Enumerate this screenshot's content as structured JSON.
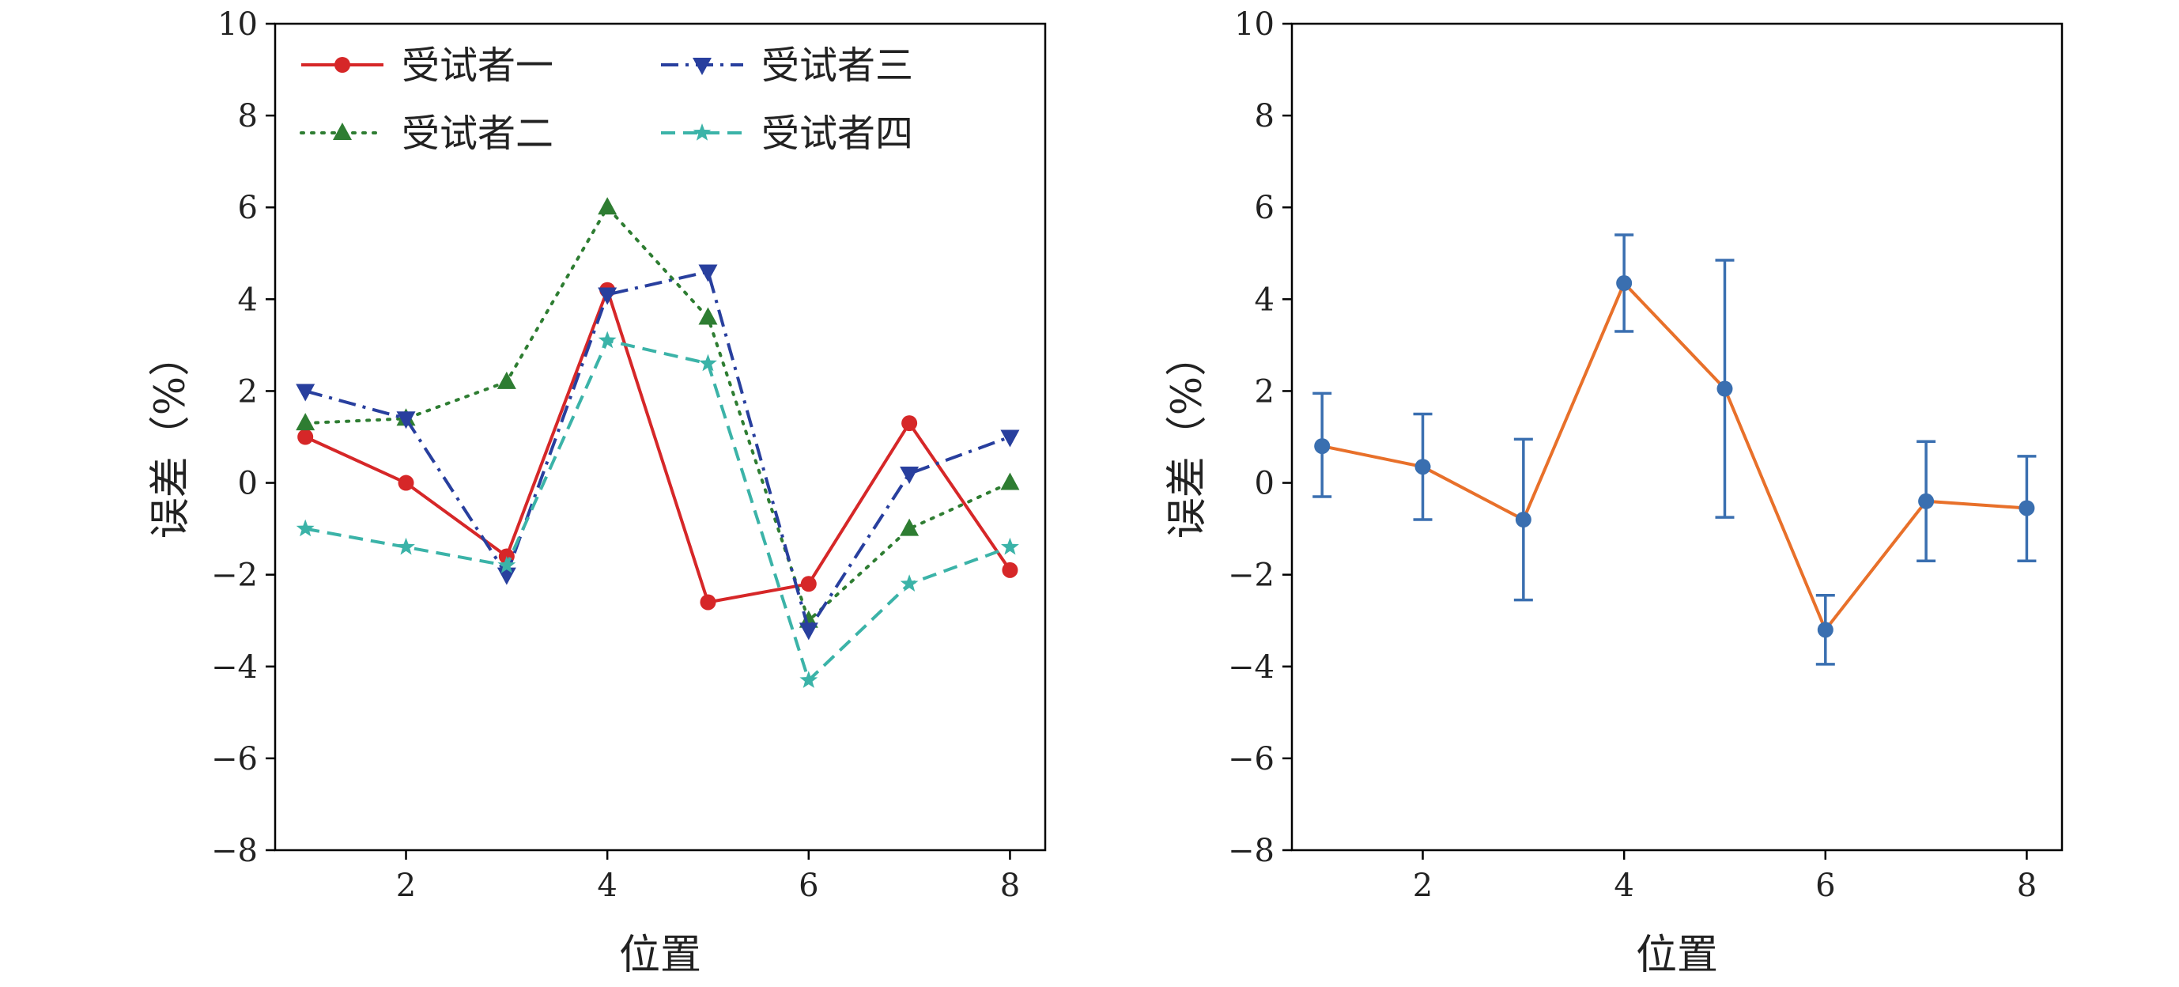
{
  "chart_data": [
    {
      "type": "line",
      "xlabel": "位置",
      "ylabel": "误差（%）",
      "ylim": [
        -8,
        10
      ],
      "xlim": [
        0.7,
        8.35
      ],
      "xticks": [
        2,
        4,
        6,
        8
      ],
      "yticks": [
        -8,
        -6,
        -4,
        -2,
        0,
        2,
        4,
        6,
        8,
        10
      ],
      "x": [
        1,
        2,
        3,
        4,
        5,
        6,
        7,
        8
      ],
      "legend": "top-left, two columns",
      "series": [
        {
          "name": "受试者一",
          "color": "#d62728",
          "marker": "circle",
          "linestyle": "solid",
          "values": [
            1.0,
            0.0,
            -1.6,
            4.2,
            -2.6,
            -2.2,
            1.3,
            -1.9
          ]
        },
        {
          "name": "受试者二",
          "color": "#2e7d32",
          "marker": "triangle-up",
          "linestyle": "dotted",
          "values": [
            1.3,
            1.4,
            2.2,
            6.0,
            3.6,
            -3.0,
            -1.0,
            0.0
          ]
        },
        {
          "name": "受试者三",
          "color": "#283f9e",
          "marker": "triangle-down",
          "linestyle": "dashdot",
          "values": [
            2.0,
            1.4,
            -2.0,
            4.1,
            4.6,
            -3.2,
            0.2,
            1.0
          ]
        },
        {
          "name": "受试者四",
          "color": "#3bb3a8",
          "marker": "star",
          "linestyle": "dashed",
          "values": [
            -1.0,
            -1.4,
            -1.8,
            3.1,
            2.6,
            -4.3,
            -2.2,
            -1.4
          ]
        }
      ]
    },
    {
      "type": "line",
      "xlabel": "位置",
      "ylabel": "误差（%）",
      "ylim": [
        -8,
        10
      ],
      "xlim": [
        0.7,
        8.35
      ],
      "xticks": [
        2,
        4,
        6,
        8
      ],
      "yticks": [
        -8,
        -6,
        -4,
        -2,
        0,
        2,
        4,
        6,
        8,
        10
      ],
      "x": [
        1,
        2,
        3,
        4,
        5,
        6,
        7,
        8
      ],
      "line_color": "#e8702a",
      "marker_color": "#3a6fb0",
      "series": [
        {
          "values": [
            0.8,
            0.35,
            -0.8,
            4.35,
            2.05,
            -3.2,
            -0.4,
            -0.55
          ],
          "err_low": [
            -0.3,
            -0.8,
            -2.55,
            3.3,
            -0.75,
            -3.95,
            -1.7,
            -1.7
          ],
          "err_high": [
            1.95,
            1.5,
            0.95,
            5.4,
            4.85,
            -2.45,
            0.9,
            0.58
          ]
        }
      ]
    }
  ]
}
